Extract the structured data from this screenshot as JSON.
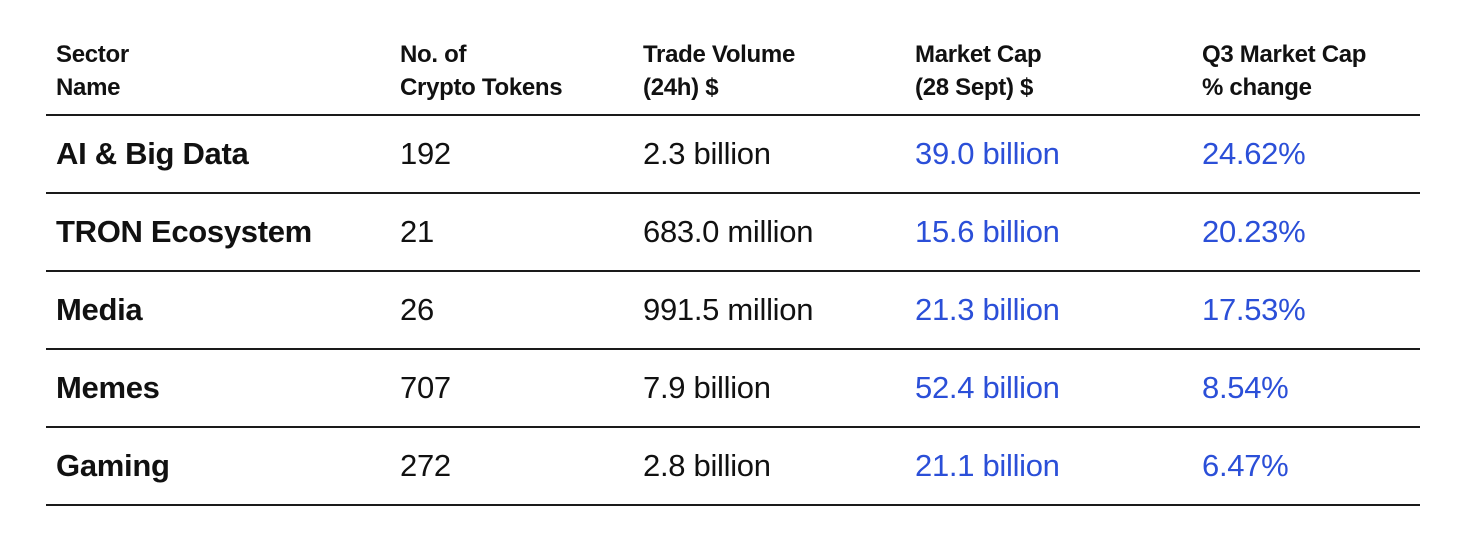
{
  "chart_data": {
    "type": "table",
    "columns": [
      "Sector\nName",
      "No. of\nCrypto Tokens",
      "Trade Volume\n(24h) $",
      "Market Cap\n(28 Sept) $",
      "Q3 Market Cap\n% change"
    ],
    "rows": [
      [
        "AI & Big Data",
        "192",
        "2.3 billion",
        "39.0 billion",
        "24.62%"
      ],
      [
        "TRON Ecosystem",
        "21",
        "683.0 million",
        "15.6 billion",
        "20.23%"
      ],
      [
        "Media",
        "26",
        "991.5 million",
        "21.3 billion",
        "17.53%"
      ],
      [
        "Memes",
        "707",
        "7.9 billion",
        "52.4 billion",
        "8.54%"
      ],
      [
        "Gaming",
        "272",
        "2.8 billion",
        "21.1 billion",
        "6.47%"
      ]
    ]
  },
  "colors": {
    "text": "#111111",
    "highlight": "#2b4fd8",
    "rule": "#1a1a1a"
  }
}
